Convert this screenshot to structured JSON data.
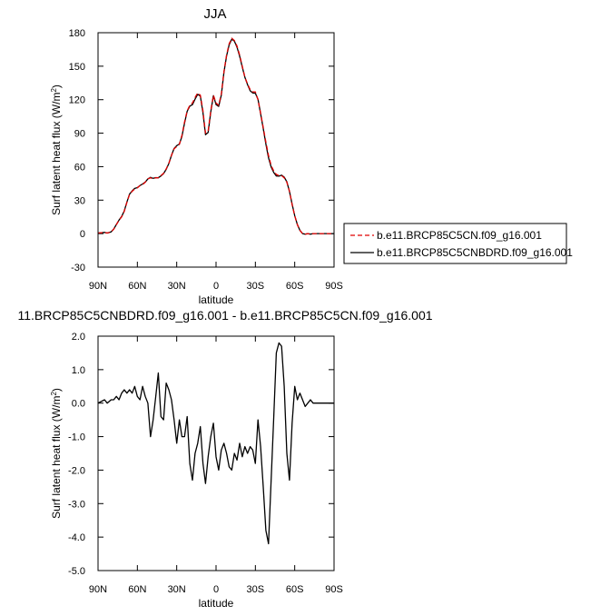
{
  "chart_data": [
    {
      "type": "line",
      "title": "JJA",
      "xlabel": "latitude",
      "ylabel": "Surf latent heat flux (W/m",
      "ylabel_sup": "2",
      "ylabel_close": ")",
      "xlim": [
        90,
        -90
      ],
      "ylim": [
        -30,
        180
      ],
      "x_ticks": [
        90,
        60,
        30,
        0,
        -30,
        -60,
        -90
      ],
      "x_tick_labels": [
        "90N",
        "60N",
        "30N",
        "0",
        "30S",
        "60S",
        "90S"
      ],
      "y_ticks": [
        -30,
        0,
        30,
        60,
        90,
        120,
        150,
        180
      ],
      "y_tick_labels": [
        "-30",
        "0",
        "30",
        "60",
        "90",
        "120",
        "150",
        "180"
      ],
      "legend_position": "right",
      "series": [
        {
          "name": "b.e11.BRCP85C5CN.f09_g16.001",
          "color": "#e00000",
          "dash": "dashed",
          "x": [
            90,
            85,
            83,
            80,
            78,
            76,
            74,
            72,
            70,
            68,
            66,
            64,
            62,
            60,
            58,
            56,
            54,
            52,
            50,
            48,
            46,
            44,
            42,
            40,
            38,
            36,
            34,
            32,
            30,
            28,
            26,
            24,
            22,
            20,
            18,
            16,
            14,
            12,
            10,
            8,
            6,
            4,
            2,
            0,
            -2,
            -4,
            -6,
            -8,
            -10,
            -12,
            -14,
            -16,
            -18,
            -20,
            -22,
            -24,
            -26,
            -28,
            -30,
            -32,
            -34,
            -36,
            -38,
            -40,
            -42,
            -44,
            -46,
            -48,
            -50,
            -52,
            -54,
            -56,
            -58,
            -60,
            -62,
            -64,
            -66,
            -68,
            -70,
            -72,
            -74,
            -76,
            -80,
            -85,
            -90
          ],
          "values": [
            0.5,
            1,
            0.5,
            1.5,
            4,
            8,
            12,
            15,
            20,
            28,
            35,
            38,
            40,
            41,
            43,
            44,
            46,
            49,
            50,
            49,
            50,
            50,
            52,
            54,
            58,
            63,
            70,
            76,
            78,
            80,
            88,
            100,
            110,
            115,
            117,
            122,
            126,
            124,
            110,
            90,
            92,
            110,
            124,
            117,
            115,
            125,
            145,
            160,
            170,
            175,
            173,
            168,
            160,
            150,
            140,
            134,
            129,
            127,
            127,
            120,
            108,
            95,
            82,
            70,
            61,
            56,
            53,
            52,
            52,
            50,
            46,
            38,
            26,
            16,
            8,
            3,
            0,
            -0.5,
            0,
            -0.5,
            0,
            0,
            0,
            0,
            0
          ]
        },
        {
          "name": "b.e11.BRCP85C5CNBDRD.f09_g16.001",
          "color": "#000000",
          "dash": "solid",
          "x": [
            90,
            85,
            83,
            80,
            78,
            76,
            74,
            72,
            70,
            68,
            66,
            64,
            62,
            60,
            58,
            56,
            54,
            52,
            50,
            48,
            46,
            44,
            42,
            40,
            38,
            36,
            34,
            32,
            30,
            28,
            26,
            24,
            22,
            20,
            18,
            16,
            14,
            12,
            10,
            8,
            6,
            4,
            2,
            0,
            -2,
            -4,
            -6,
            -8,
            -10,
            -12,
            -14,
            -16,
            -18,
            -20,
            -22,
            -24,
            -26,
            -28,
            -30,
            -32,
            -34,
            -36,
            -38,
            -40,
            -42,
            -44,
            -46,
            -48,
            -50,
            -52,
            -54,
            -56,
            -58,
            -60,
            -62,
            -64,
            -66,
            -68,
            -70,
            -72,
            -74,
            -76,
            -80,
            -85,
            -90
          ],
          "values": [
            0.5,
            1.1,
            0.5,
            1.6,
            4.1,
            8.2,
            12.1,
            15.3,
            20.4,
            28.3,
            35.4,
            38.3,
            40.5,
            41.2,
            43.1,
            44.5,
            46.2,
            49,
            50.4,
            49.5,
            50.2,
            50.1,
            51.6,
            53.8,
            57.6,
            62.8,
            70.1,
            76.3,
            78.8,
            80.3,
            87,
            99,
            109.6,
            114.2,
            115.5,
            120.5,
            124.8,
            123.3,
            108.2,
            88.6,
            90.6,
            109,
            123.6,
            115.6,
            114,
            124,
            144.5,
            159.2,
            169,
            174.2,
            172.5,
            167,
            159,
            149.2,
            140,
            133.5,
            128,
            126,
            125.8,
            120.3,
            107.5,
            94.1,
            80.3,
            68,
            59.7,
            54.7,
            51.6,
            51.5,
            52.4,
            50.6,
            46.4,
            37.7,
            26.5,
            16,
            8.1,
            3,
            0,
            -0.5,
            0,
            -0.5,
            0,
            0,
            0,
            0,
            0
          ]
        }
      ]
    },
    {
      "type": "line",
      "title": "11.BRCP85C5CNBDRD.f09_g16.001 - b.e11.BRCP85C5CN.f09_g16.001",
      "xlabel": "latitude",
      "ylabel": "Surf latent heat flux (W/m",
      "ylabel_sup": "2",
      "ylabel_close": ")",
      "xlim": [
        90,
        -90
      ],
      "ylim": [
        -5,
        2
      ],
      "x_ticks": [
        90,
        60,
        30,
        0,
        -30,
        -60,
        -90
      ],
      "x_tick_labels": [
        "90N",
        "60N",
        "30N",
        "0",
        "30S",
        "60S",
        "90S"
      ],
      "y_ticks": [
        -5,
        -4,
        -3,
        -2,
        -1,
        0,
        1,
        2
      ],
      "y_tick_labels": [
        "-5.0",
        "-4.0",
        "-3.0",
        "-2.0",
        "-1.0",
        "0.0",
        "1.0",
        "2.0"
      ],
      "series": [
        {
          "color": "#000000",
          "dash": "solid",
          "x": [
            90,
            85,
            83,
            80,
            78,
            76,
            74,
            72,
            70,
            68,
            66,
            64,
            62,
            60,
            58,
            56,
            54,
            52,
            50,
            48,
            46,
            44,
            42,
            40,
            38,
            36,
            34,
            32,
            30,
            28,
            26,
            24,
            22,
            20,
            18,
            16,
            14,
            12,
            10,
            8,
            6,
            4,
            2,
            0,
            -2,
            -4,
            -6,
            -8,
            -10,
            -12,
            -14,
            -16,
            -18,
            -20,
            -22,
            -24,
            -26,
            -28,
            -30,
            -32,
            -34,
            -36,
            -38,
            -40,
            -42,
            -44,
            -46,
            -48,
            -50,
            -52,
            -54,
            -56,
            -58,
            -60,
            -62,
            -64,
            -66,
            -68,
            -70,
            -72,
            -74,
            -76,
            -80,
            -85,
            -90
          ],
          "values": [
            0,
            0.1,
            0,
            0.1,
            0.1,
            0.2,
            0.1,
            0.3,
            0.4,
            0.3,
            0.4,
            0.3,
            0.5,
            0.2,
            0.1,
            0.5,
            0.2,
            0,
            -1,
            -0.5,
            0.2,
            0.9,
            -0.4,
            -0.5,
            0.6,
            0.4,
            0.1,
            -0.5,
            -1.2,
            -0.5,
            -1,
            -1,
            -0.4,
            -1.8,
            -2.3,
            -1.5,
            -1.2,
            -0.7,
            -1.8,
            -2.4,
            -1.6,
            -1,
            -0.6,
            -1.6,
            -2,
            -1.4,
            -1.2,
            -1.5,
            -1.9,
            -2,
            -1.5,
            -1.7,
            -1.2,
            -1.6,
            -1.3,
            -1.5,
            -1.3,
            -1.4,
            -1.8,
            -0.5,
            -1.3,
            -2.5,
            -3.8,
            -4.2,
            -2.3,
            -0.4,
            1.5,
            1.8,
            1.7,
            0.5,
            -1.5,
            -2.3,
            -0.6,
            0.5,
            0.1,
            0.3,
            0.1,
            -0.1,
            0,
            0.1,
            0,
            0,
            0,
            0,
            0
          ]
        }
      ]
    }
  ]
}
